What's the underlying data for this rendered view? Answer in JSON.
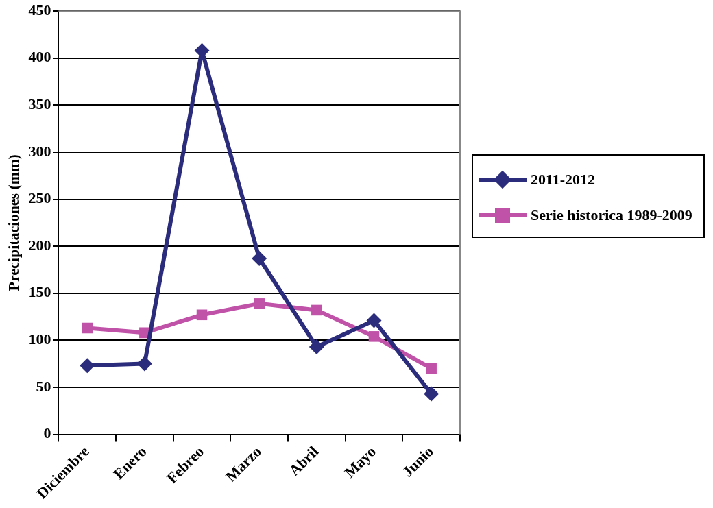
{
  "chart_data": {
    "type": "line",
    "ylabel": "Precipitaciones (mm)",
    "categories": [
      "Diciembre",
      "Enero",
      "Febreo",
      "Marzo",
      "Abril",
      "Mayo",
      "Junio"
    ],
    "series": [
      {
        "name": "2011-2012",
        "color": "#2b2c7c",
        "values": [
          73,
          75,
          408,
          187,
          93,
          121,
          43
        ],
        "marker": "diamond"
      },
      {
        "name": "Serie historica 1989-2009",
        "color": "#c052a8",
        "values": [
          113,
          108,
          127,
          139,
          132,
          104,
          70
        ],
        "marker": "square"
      }
    ],
    "ylim": [
      0,
      450
    ],
    "yticks": [
      0,
      50,
      100,
      150,
      200,
      250,
      300,
      350,
      400,
      450
    ],
    "grid": "y",
    "legend": "right",
    "line_style": "solid"
  }
}
